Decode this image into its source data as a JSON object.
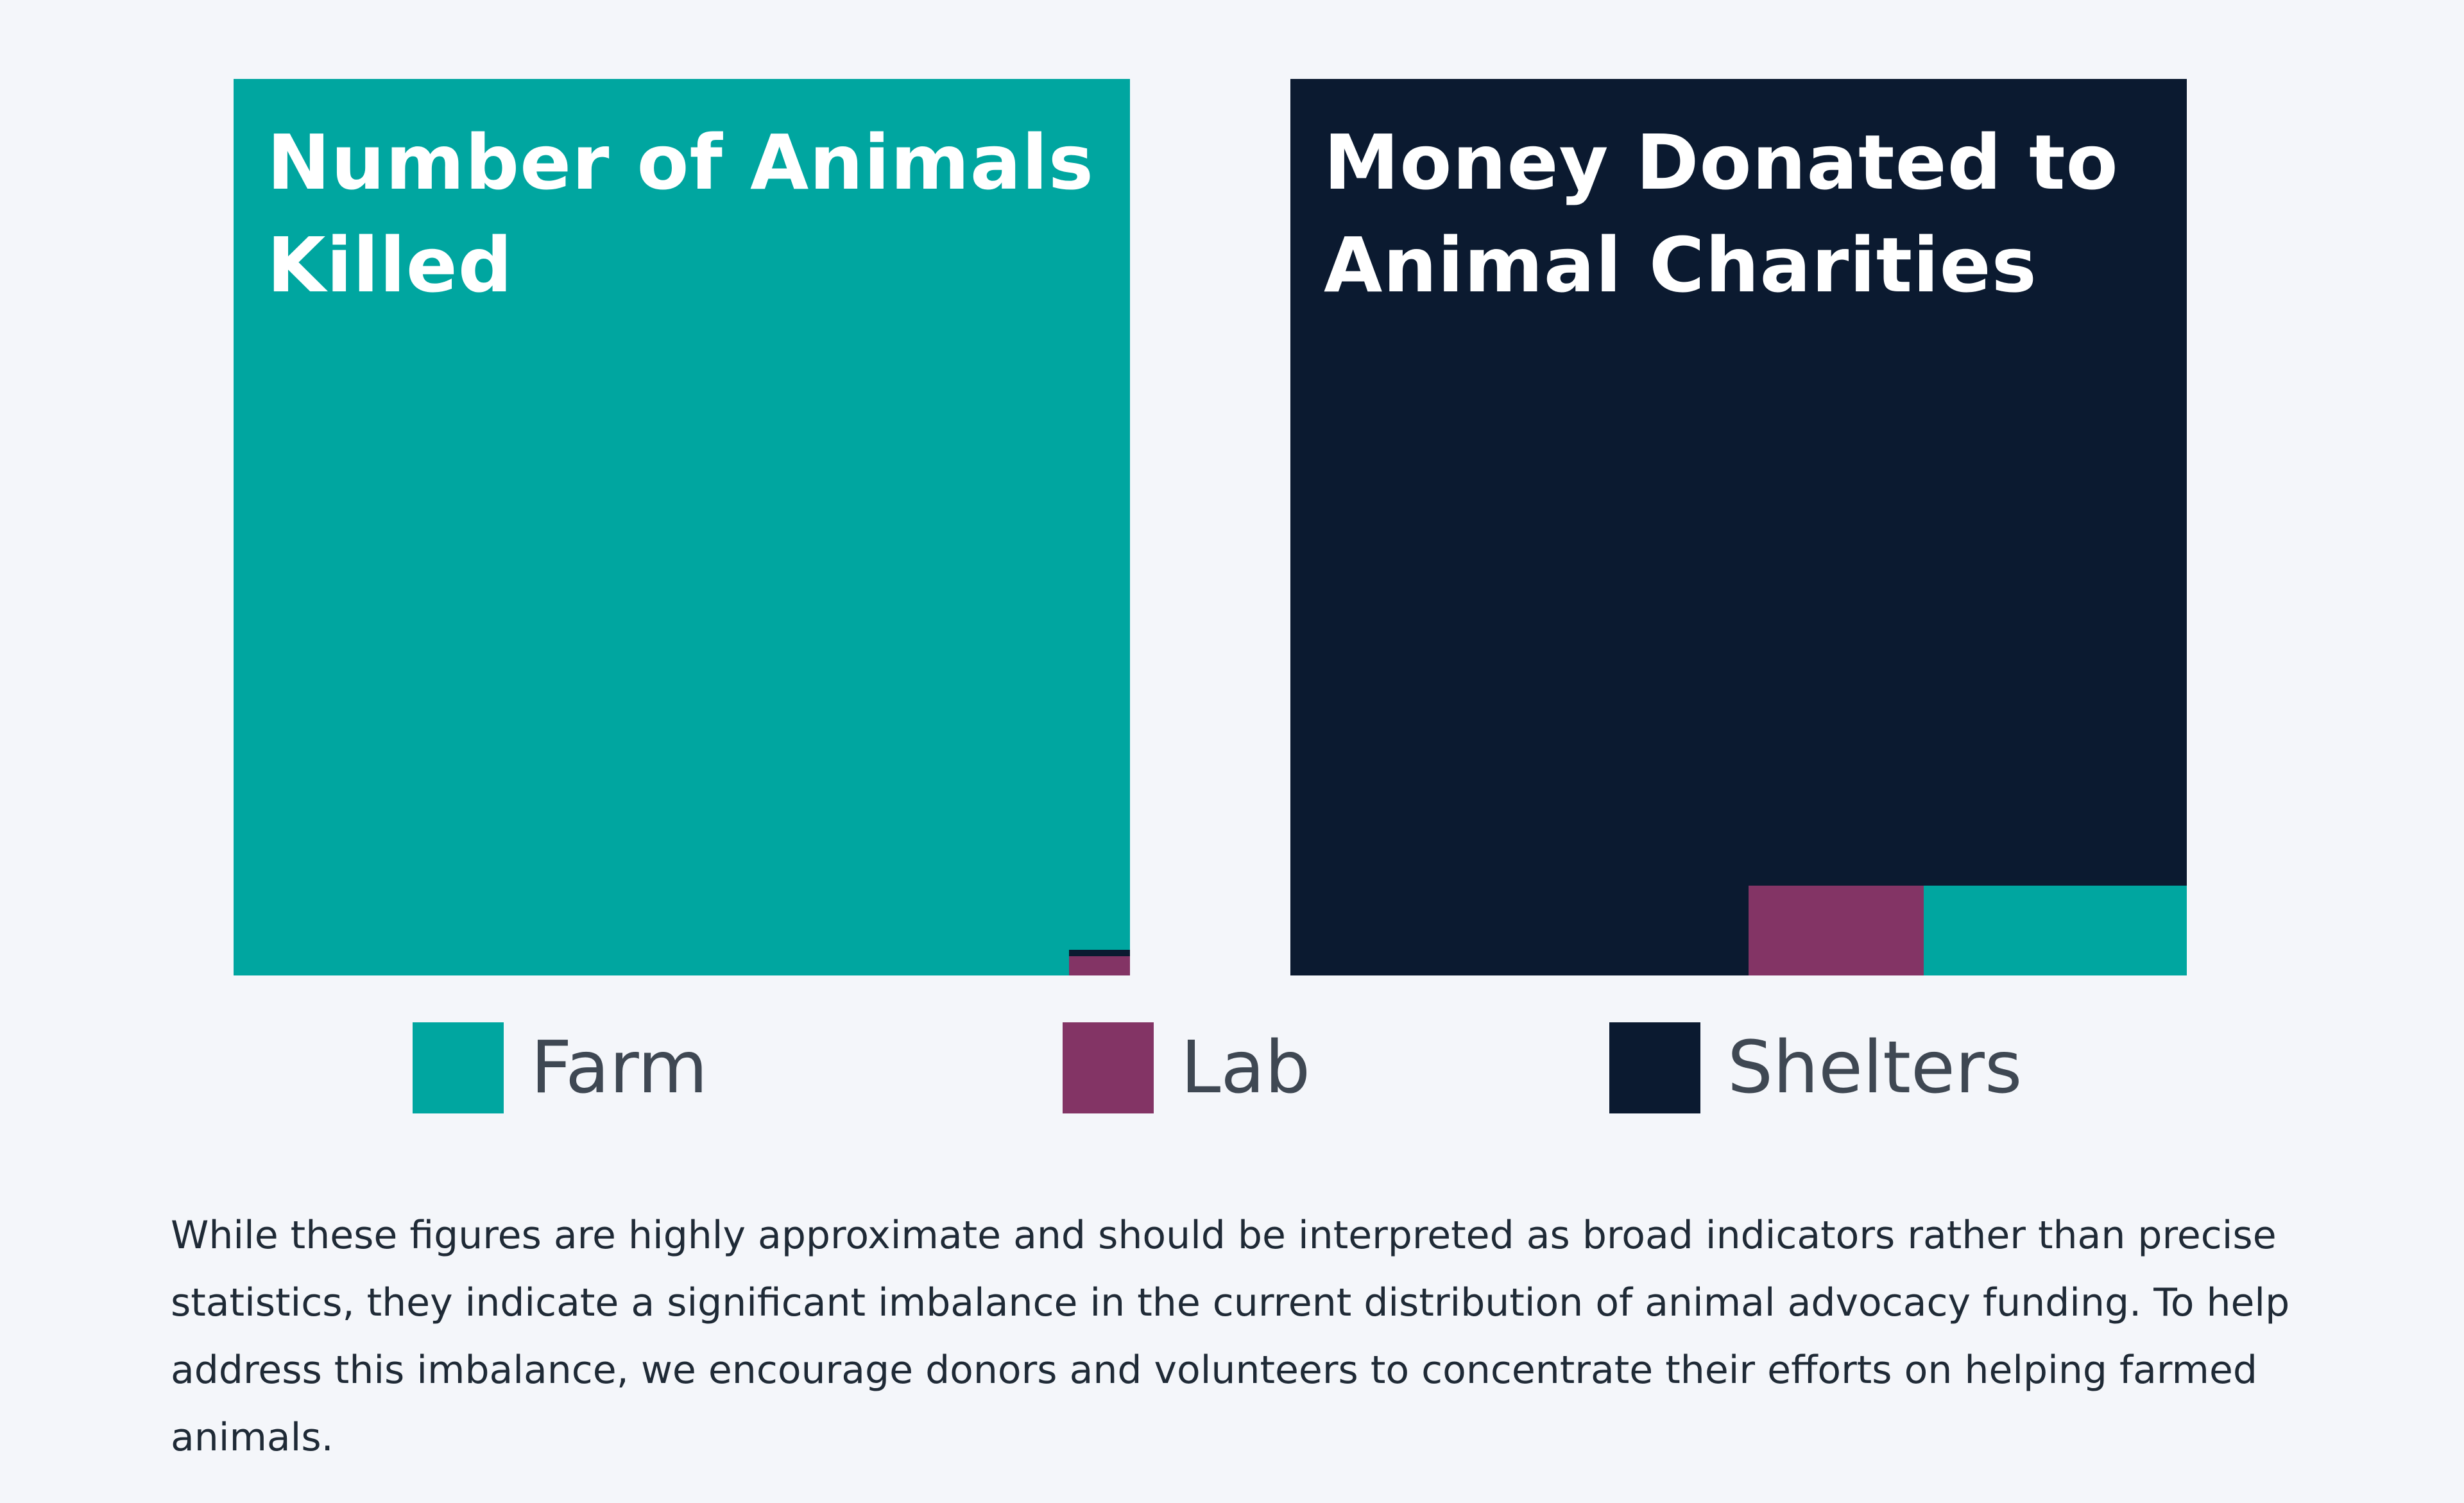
{
  "colors": {
    "background": "#f4f6fa",
    "Farm": "#00a6a0",
    "Lab": "#833465",
    "Shelters": "#0b1a30"
  },
  "chart_data": [
    {
      "type": "treemap",
      "title": "Number of Animals Killed",
      "series": [
        {
          "name": "Farm",
          "value": 99.84
        },
        {
          "name": "Lab",
          "value": 0.12
        },
        {
          "name": "Shelters",
          "value": 0.04
        }
      ]
    },
    {
      "type": "treemap",
      "title": "Money Donated to Animal Charities",
      "series": [
        {
          "name": "Shelters",
          "value": 97.0
        },
        {
          "name": "Lab",
          "value": 2.0
        },
        {
          "name": "Farm",
          "value": 3.0
        }
      ]
    }
  ],
  "legend": {
    "farm_label": "Farm",
    "lab_label": "Lab",
    "shelters_label": "Shelters"
  },
  "note": "While these figures are highly approximate and should be interpreted as broad indicators rather than precise statistics, they indicate a significant imbalance in the current distribution of animal advocacy funding. To help address this imbalance, we encourage donors and volunteers to concentrate their efforts on helping farmed animals."
}
